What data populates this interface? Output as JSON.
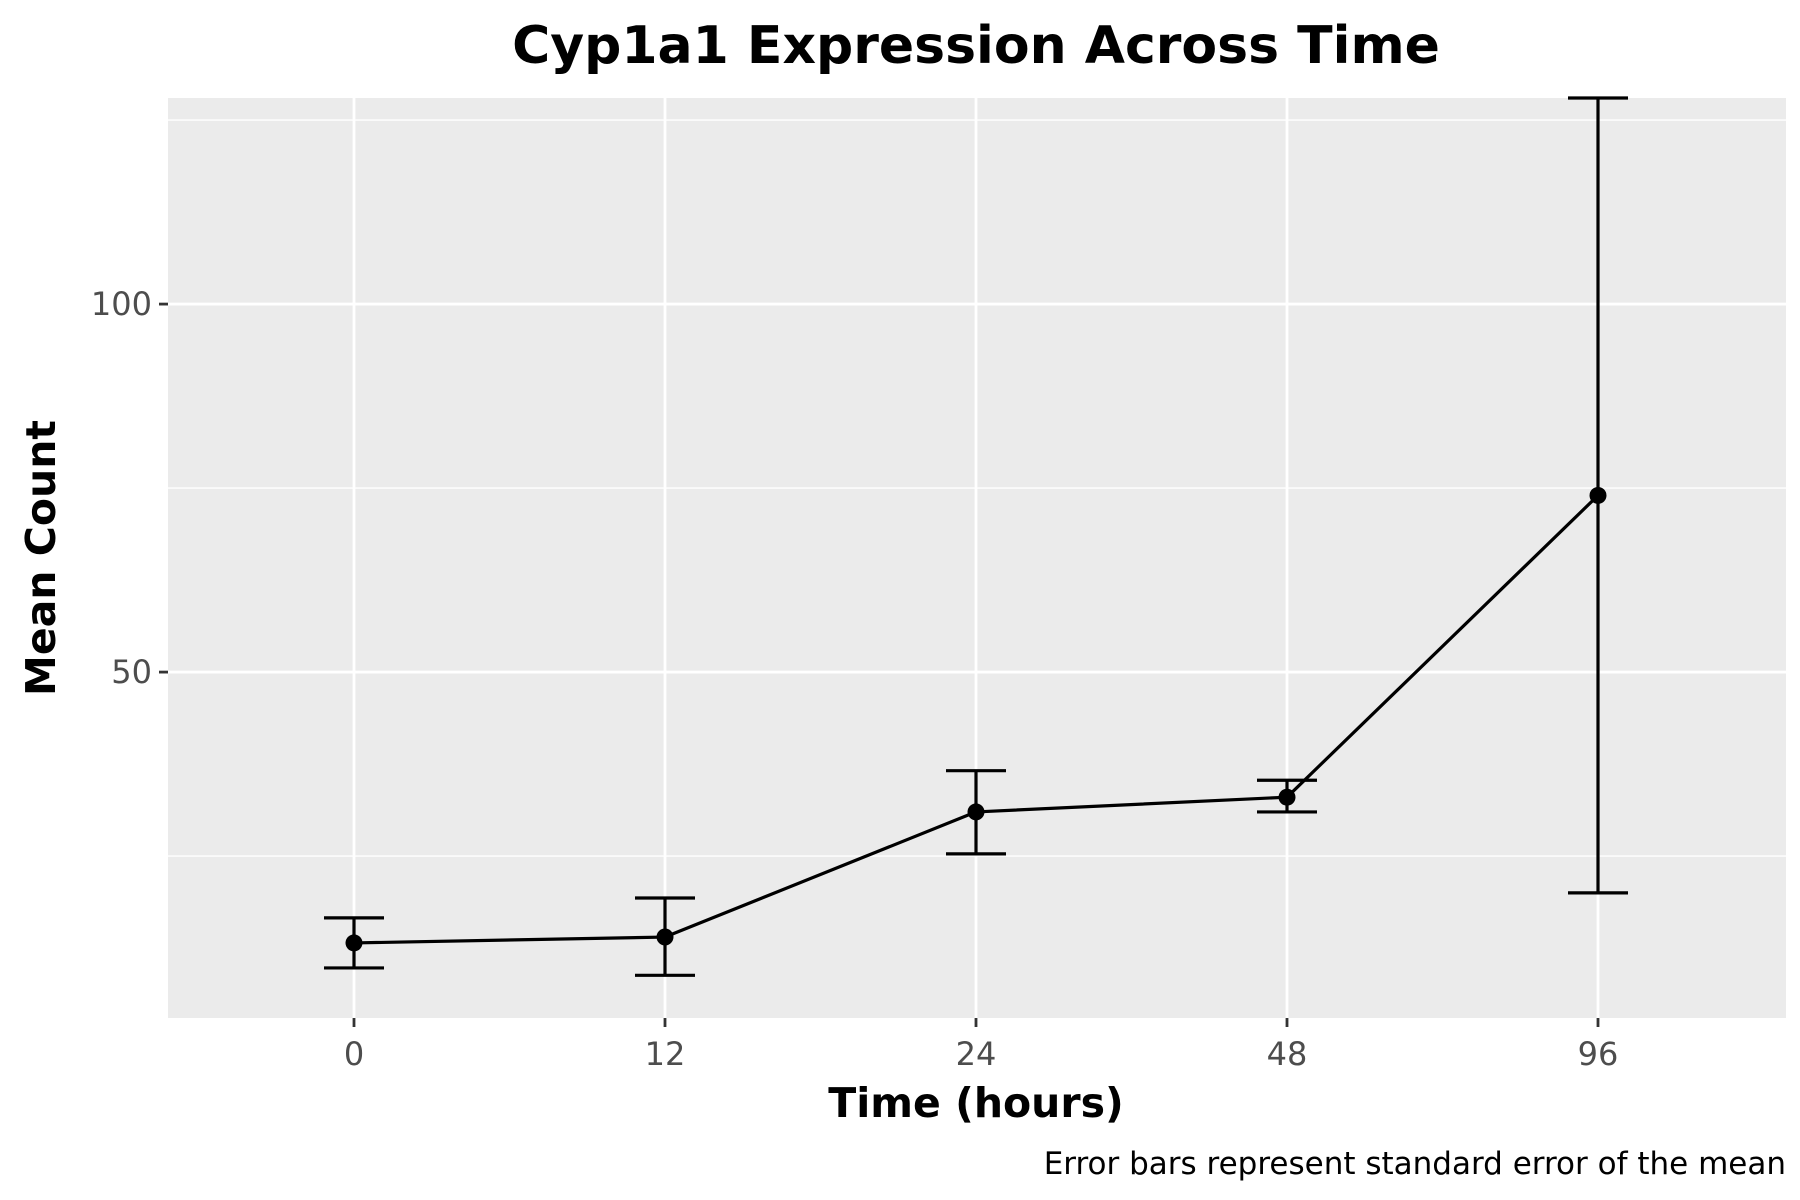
{
  "chart_data": {
    "type": "line",
    "title": "Cyp1a1 Expression Across Time",
    "xlabel": "Time (hours)",
    "ylabel": "Mean Count",
    "caption": "Error bars represent standard error of the mean",
    "x_scale": "categorical",
    "categories": [
      "0",
      "12",
      "24",
      "48",
      "96"
    ],
    "y_ticks": [
      50,
      100
    ],
    "ylim": [
      3,
      128
    ],
    "grid": true,
    "legend": "none",
    "colors": {
      "panel_background": "#ebebeb",
      "grid": "#ffffff",
      "line": "#000000",
      "tick_label": "#4d4d4d"
    },
    "series": [
      {
        "values": [
          13.2,
          14,
          31,
          33,
          74
        ],
        "error_low": [
          9.8,
          8.8,
          25.3,
          31,
          20
        ],
        "error_high": [
          16.6,
          19.3,
          36.6,
          35.3,
          128
        ]
      }
    ]
  }
}
